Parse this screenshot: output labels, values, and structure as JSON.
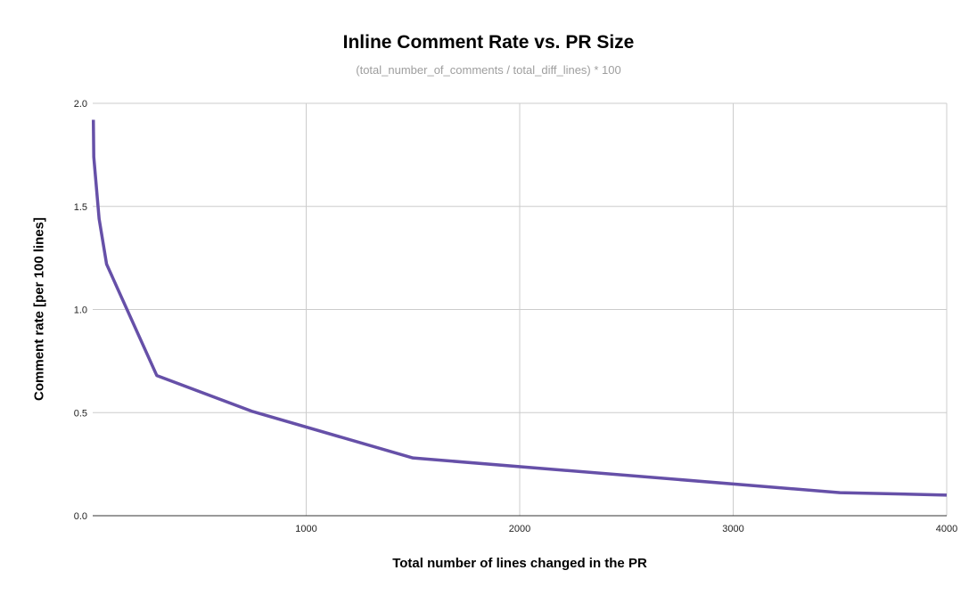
{
  "chart_data": {
    "type": "line",
    "title": "Inline Comment Rate vs. PR Size",
    "subtitle": "(total_number_of_comments / total_diff_lines) * 100",
    "xlabel": "Total number of lines changed in the PR",
    "ylabel": "Comment rate [per 100 lines]",
    "xlim": [
      0,
      4000
    ],
    "ylim": [
      0,
      2.0
    ],
    "xticks": [
      1000,
      2000,
      3000,
      4000
    ],
    "xtick_labels": [
      "1000",
      "2000",
      "3000",
      "4000"
    ],
    "yticks": [
      0,
      0.5,
      1.0,
      1.5,
      2.0
    ],
    "ytick_labels": [
      "0.0",
      "0.5",
      "1.0",
      "1.5",
      "2.0"
    ],
    "grid": true,
    "series": [
      {
        "color": "#6650a8",
        "x": [
          3,
          5,
          30,
          65,
          300,
          750,
          1500,
          3500,
          4000
        ],
        "y": [
          1.92,
          1.74,
          1.44,
          1.22,
          0.68,
          0.505,
          0.28,
          0.112,
          0.1
        ]
      }
    ]
  }
}
